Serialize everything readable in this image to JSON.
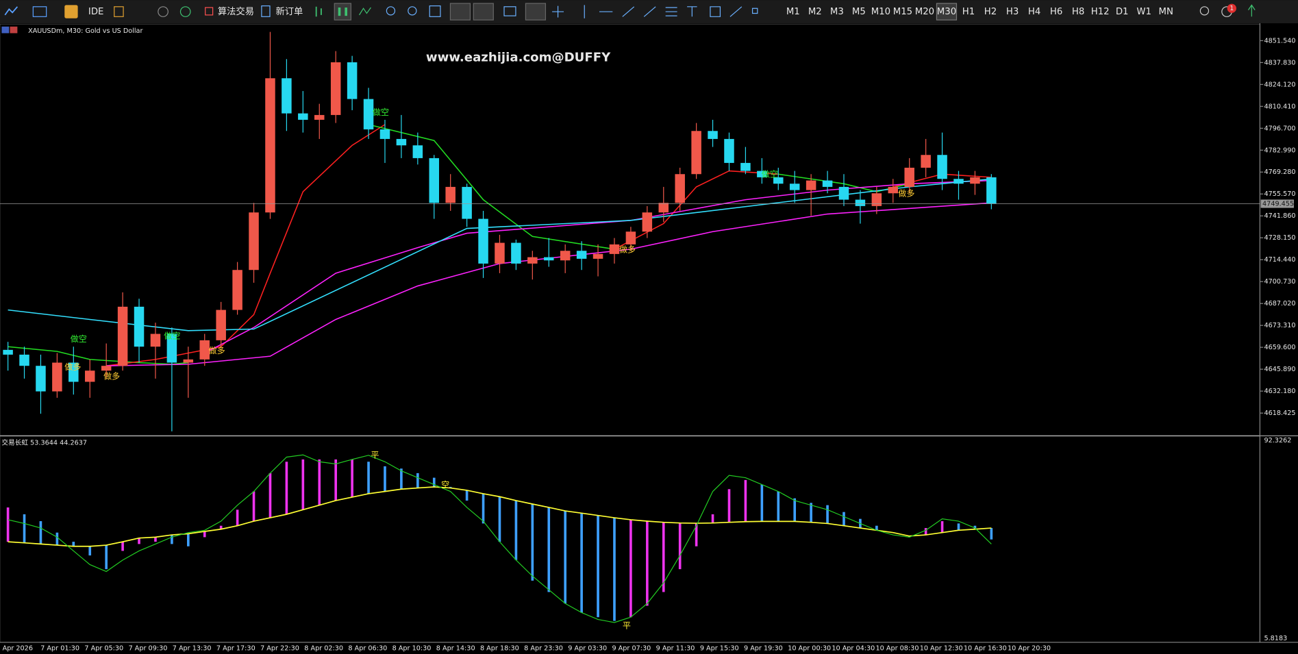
{
  "toolbar": {
    "items": [
      "IDE",
      "算法交易",
      "新订单"
    ],
    "timeframes": [
      "M1",
      "M2",
      "M3",
      "M5",
      "M10",
      "M15",
      "M20",
      "M30",
      "H1",
      "H2",
      "H3",
      "H4",
      "H6",
      "H8",
      "H12",
      "D1",
      "W1",
      "MN"
    ],
    "active": "M30",
    "badge": "1"
  },
  "time_axis": [
    "Apr 2026",
    "7 Apr 01:30",
    "7 Apr 05:30",
    "7 Apr 09:30",
    "7 Apr 13:30",
    "7 Apr 17:30",
    "7 Apr 22:30",
    "8 Apr 02:30",
    "8 Apr 06:30",
    "8 Apr 10:30",
    "8 Apr 14:30",
    "8 Apr 18:30",
    "8 Apr 23:30",
    "9 Apr 03:30",
    "9 Apr 07:30",
    "9 Apr 11:30",
    "9 Apr 15:30",
    "9 Apr 19:30",
    "10 Apr 00:30",
    "10 Apr 04:30",
    "10 Apr 08:30",
    "10 Apr 12:30",
    "10 Apr 16:30",
    "10 Apr 20:30"
  ],
  "chart_data": [
    {
      "type": "candlestick",
      "title": "XAUUSDm, M30:  Gold vs US Dollar",
      "watermark": "www.eazhijia.com@DUFFY",
      "bull_color": "#f0584a",
      "bear_color": "#27d8f0",
      "open": [
        4658,
        4655,
        4648,
        4632,
        4650,
        4638,
        4645,
        4648,
        4685,
        4660,
        4668,
        4650,
        4652,
        4664,
        4683,
        4708,
        4744,
        4828,
        4806,
        4802,
        4805,
        4838,
        4815,
        4796,
        4790,
        4786,
        4778,
        4750,
        4760,
        4740,
        4712,
        4725,
        4712,
        4716,
        4714,
        4720,
        4715,
        4718,
        4724,
        4732,
        4744,
        4750,
        4768,
        4795,
        4790,
        4775,
        4770,
        4766,
        4762,
        4758,
        4764,
        4760,
        4752,
        4748,
        4756,
        4760,
        4772,
        4780,
        4765,
        4762,
        4766
      ],
      "high": [
        4663,
        4660,
        4655,
        4656,
        4660,
        4652,
        4662,
        4694,
        4690,
        4675,
        4672,
        4660,
        4668,
        4688,
        4713,
        4750,
        4857,
        4840,
        4820,
        4812,
        4845,
        4842,
        4822,
        4802,
        4805,
        4794,
        4780,
        4768,
        4762,
        4745,
        4730,
        4727,
        4720,
        4728,
        4724,
        4726,
        4724,
        4728,
        4735,
        4748,
        4760,
        4772,
        4800,
        4802,
        4794,
        4785,
        4778,
        4772,
        4770,
        4768,
        4770,
        4768,
        4758,
        4760,
        4765,
        4778,
        4790,
        4794,
        4770,
        4770,
        4768
      ],
      "low": [
        4645,
        4640,
        4618,
        4628,
        4630,
        4628,
        4640,
        4645,
        4650,
        4640,
        4607,
        4628,
        4648,
        4660,
        4680,
        4700,
        4740,
        4795,
        4794,
        4790,
        4800,
        4808,
        4790,
        4775,
        4778,
        4774,
        4740,
        4745,
        4735,
        4703,
        4706,
        4708,
        4702,
        4710,
        4706,
        4708,
        4704,
        4712,
        4720,
        4728,
        4738,
        4745,
        4765,
        4785,
        4770,
        4768,
        4762,
        4758,
        4750,
        4742,
        4756,
        4748,
        4737,
        4743,
        4750,
        4756,
        4766,
        4758,
        4752,
        4755,
        4746
      ],
      "close": [
        4655,
        4648,
        4632,
        4650,
        4638,
        4645,
        4648,
        4685,
        4660,
        4668,
        4650,
        4652,
        4664,
        4683,
        4708,
        4744,
        4828,
        4806,
        4802,
        4805,
        4838,
        4815,
        4796,
        4790,
        4786,
        4778,
        4750,
        4760,
        4740,
        4712,
        4725,
        4712,
        4716,
        4714,
        4720,
        4715,
        4718,
        4724,
        4732,
        4744,
        4750,
        4768,
        4795,
        4790,
        4775,
        4770,
        4766,
        4762,
        4758,
        4764,
        4760,
        4752,
        4748,
        4756,
        4760,
        4772,
        4780,
        4765,
        4762,
        4766,
        4749.455
      ],
      "lines": [
        {
          "color": "#22dd22",
          "x": [
            0,
            3,
            5,
            8,
            10,
            11
          ],
          "values": [
            4660,
            4657,
            4652,
            4650,
            4649,
            4650
          ]
        },
        {
          "color": "#ff2020",
          "x": [
            6,
            9,
            13,
            15,
            16,
            18,
            21,
            23
          ],
          "values": [
            4648,
            4652,
            4660,
            4680,
            4706,
            4757,
            4786,
            4799
          ]
        },
        {
          "color": "#22dd22",
          "x": [
            22,
            26,
            29,
            32,
            37
          ],
          "values": [
            4799,
            4789,
            4752,
            4729,
            4721
          ]
        },
        {
          "color": "#ff2020",
          "x": [
            37,
            40,
            42,
            44,
            47
          ],
          "values": [
            4721,
            4737,
            4760,
            4770,
            4768
          ]
        },
        {
          "color": "#22dd22",
          "x": [
            47,
            51,
            53,
            55
          ],
          "values": [
            4768,
            4762,
            4757,
            4762
          ]
        },
        {
          "color": "#ff2020",
          "x": [
            54,
            57,
            60
          ],
          "values": [
            4760,
            4768,
            4766
          ]
        },
        {
          "color": "#ff22ff",
          "x": [
            12,
            15,
            20,
            25,
            28,
            38,
            45,
            50,
            55,
            60
          ],
          "values": [
            4656,
            4672,
            4706,
            4722,
            4731,
            4739,
            4752,
            4758,
            4762,
            4764
          ]
        },
        {
          "color": "#ff22ff",
          "x": [
            6,
            11,
            16,
            20,
            25,
            30,
            38,
            43,
            50,
            60
          ],
          "values": [
            4648,
            4649,
            4654,
            4677,
            4698,
            4712,
            4721,
            4732,
            4743,
            4750
          ]
        },
        {
          "color": "#33e0ff",
          "x": [
            0,
            5,
            11,
            15,
            28,
            38,
            55,
            60
          ],
          "values": [
            4683,
            4677,
            4670,
            4671,
            4734,
            4739,
            4760,
            4765
          ]
        }
      ],
      "annotations": [
        {
          "text": "做空",
          "color": "#33ee33"
        },
        {
          "text": "做空",
          "color": "#33ee33"
        },
        {
          "text": "做空",
          "color": "#33ee33"
        },
        {
          "text": "做空",
          "color": "#33ee33"
        },
        {
          "text": "做多",
          "color": "#ffcc33"
        },
        {
          "text": "做多",
          "color": "#ffcc33"
        },
        {
          "text": "做多",
          "color": "#ffcc33"
        },
        {
          "text": "做多",
          "color": "#ffcc33"
        },
        {
          "text": "做多",
          "color": "#ffcc33"
        }
      ],
      "ylim": [
        4604.96,
        4862.42
      ],
      "yticks": [
        {
          "value": 4851.54,
          "label": "4851.540"
        },
        {
          "value": 4837.83,
          "label": "4837.830"
        },
        {
          "value": 4824.12,
          "label": "4824.120"
        },
        {
          "value": 4810.41,
          "label": "4810.410"
        },
        {
          "value": 4796.7,
          "label": "4796.700"
        },
        {
          "value": 4782.99,
          "label": "4782.990"
        },
        {
          "value": 4769.28,
          "label": "4769.280"
        },
        {
          "value": 4755.57,
          "label": "4755.570"
        },
        {
          "value": 4741.86,
          "label": "4741.860"
        },
        {
          "value": 4728.15,
          "label": "4728.150"
        },
        {
          "value": 4714.44,
          "label": "4714.440"
        },
        {
          "value": 4700.73,
          "label": "4700.730"
        },
        {
          "value": 4687.02,
          "label": "4687.020"
        },
        {
          "value": 4673.31,
          "label": "4673.310"
        },
        {
          "value": 4659.6,
          "label": "4659.600"
        },
        {
          "value": 4645.89,
          "label": "4645.890"
        },
        {
          "value": 4632.18,
          "label": "4632.180"
        },
        4618.425
      ],
      "last_price": 4749.455,
      "grid": false
    },
    {
      "type": "oscillator",
      "title": "交易长虹 53.3644 44.2637",
      "ylim": [
        5.8183,
        92.3262
      ],
      "yticks": [
        92.3262,
        5.8183
      ],
      "rise_color": "#ee33ee",
      "fall_color": "#3ea0ff",
      "signal_color": "#ffff33",
      "line_color": "#22cc22",
      "main": [
        63,
        60,
        57,
        52,
        48,
        42,
        36,
        44,
        47,
        48,
        47,
        46,
        50,
        55,
        62,
        70,
        78,
        83,
        84,
        84,
        84,
        84,
        83,
        81,
        80,
        78,
        76,
        72,
        66,
        56,
        48,
        40,
        31,
        26,
        21,
        17,
        15,
        13.4,
        15,
        20,
        26,
        36,
        46,
        60,
        71,
        75,
        73,
        70,
        67,
        65,
        64,
        61,
        58,
        55,
        52,
        50,
        54,
        57,
        56,
        55,
        49
      ],
      "signal": [
        48,
        47.5,
        47,
        46.5,
        46,
        46,
        46.5,
        48,
        49.6,
        50,
        51,
        51.5,
        52.5,
        53.5,
        55,
        57,
        58.5,
        60,
        62,
        64,
        66,
        67.5,
        69,
        70,
        71,
        71.5,
        72,
        71.5,
        70.5,
        69,
        67.7,
        66,
        64.5,
        63,
        61.5,
        60.5,
        59.5,
        58.5,
        57.6,
        57,
        56.5,
        56.2,
        56.1,
        56.2,
        56.5,
        56.8,
        56.9,
        56.9,
        56.9,
        56.5,
        56,
        55,
        54,
        53,
        52,
        50.5,
        51,
        52,
        53,
        53.5,
        54
      ],
      "line": [
        57.6,
        56,
        54,
        50,
        44,
        38,
        35,
        40,
        44,
        47,
        50,
        52,
        53,
        57,
        64,
        70,
        78,
        85,
        86,
        83,
        82,
        84,
        85.8,
        83,
        79,
        76,
        73,
        70,
        63,
        57,
        48,
        40,
        33,
        27,
        21,
        17,
        14,
        12.7,
        15,
        21,
        30,
        42,
        55,
        70,
        77,
        76,
        73,
        70,
        66,
        64,
        62,
        59,
        56,
        53,
        51,
        50,
        53,
        58,
        57,
        54,
        47
      ],
      "annotations": [
        {
          "text": "平",
          "color": "#ffee33"
        },
        {
          "text": "空",
          "color": "#ffee33"
        },
        {
          "text": "平",
          "color": "#ffee33"
        }
      ]
    }
  ]
}
